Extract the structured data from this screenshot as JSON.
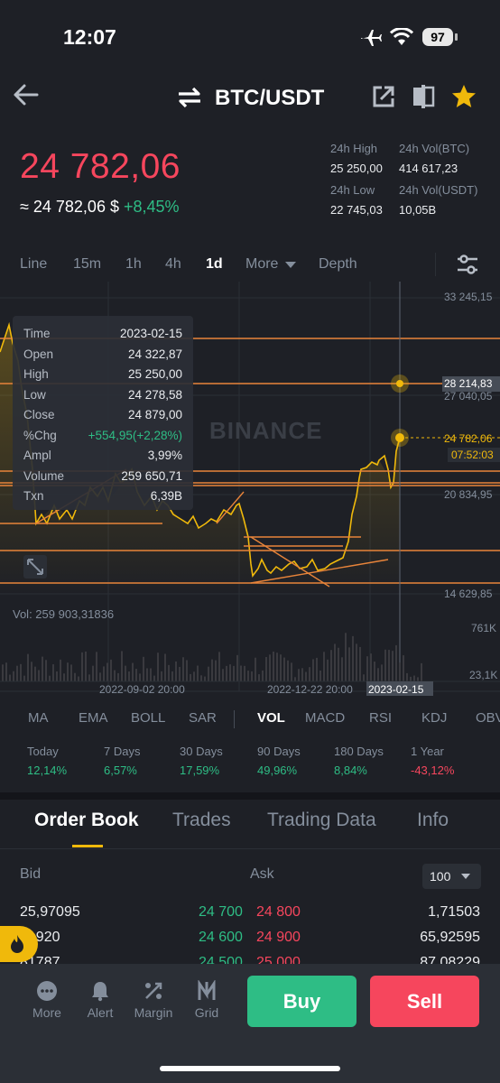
{
  "status": {
    "time": "12:07",
    "battery": "97"
  },
  "header": {
    "pair": "BTC/USDT",
    "icons": [
      "back-arrow-icon",
      "swap-icon",
      "share-icon",
      "compare-icon",
      "star-icon"
    ]
  },
  "price": {
    "last": "24 782,06",
    "approx": "≈ 24 782,06 $",
    "change": "+8,45%",
    "high_label": "24h High",
    "high": "25 250,00",
    "low_label": "24h Low",
    "low": "22 745,03",
    "vol_btc_label": "24h Vol(BTC)",
    "vol_btc": "414 617,23",
    "vol_usdt_label": "24h Vol(USDT)",
    "vol_usdt": "10,05B"
  },
  "intervals": [
    "Line",
    "15m",
    "1h",
    "4h",
    "1d",
    "More",
    "Depth"
  ],
  "active_interval": "1d",
  "chart": {
    "y_labels": [
      "33 245,15",
      "27 040,05",
      "20 834,95",
      "14 629,85"
    ],
    "highlight_price": "28 214,83",
    "current_price": "24 782,06",
    "countdown": "07:52:03",
    "watermark": "BINANCE",
    "vol_label": "Vol: 259 903,31836",
    "vol_axis": [
      "761K",
      "23,1K"
    ],
    "x_labels": [
      "2022-09-02 20:00",
      "2022-12-22 20:00"
    ],
    "x_selected": "2023-02-15",
    "colors": {
      "line": "#f0b90b",
      "accent_line": "#e8843a"
    }
  },
  "tooltip": [
    {
      "label": "Time",
      "value": "2023-02-15"
    },
    {
      "label": "Open",
      "value": "24 322,87"
    },
    {
      "label": "High",
      "value": "25 250,00"
    },
    {
      "label": "Low",
      "value": "24 278,58"
    },
    {
      "label": "Close",
      "value": "24 879,00"
    },
    {
      "label": "%Chg",
      "value": "+554,95(+2,28%)"
    },
    {
      "label": "Ampl",
      "value": "3,99%"
    },
    {
      "label": "Volume",
      "value": "259 650,71"
    },
    {
      "label": "Txn",
      "value": "6,39B"
    }
  ],
  "indicators": [
    "MA",
    "EMA",
    "BOLL",
    "SAR",
    "VOL",
    "MACD",
    "RSI",
    "KDJ",
    "OBV"
  ],
  "active_indicator": "VOL",
  "performance": [
    {
      "label": "Today",
      "value": "12,14%"
    },
    {
      "label": "7 Days",
      "value": "6,57%"
    },
    {
      "label": "30 Days",
      "value": "17,59%"
    },
    {
      "label": "90 Days",
      "value": "49,96%"
    },
    {
      "label": "180 Days",
      "value": "8,84%"
    },
    {
      "label": "1 Year",
      "value": "-43,12%"
    }
  ],
  "orderbook_tabs": [
    "Order Book",
    "Trades",
    "Trading Data",
    "Info"
  ],
  "orderbook": {
    "bid_label": "Bid",
    "ask_label": "Ask",
    "depth": "100",
    "rows": [
      {
        "bid_qty": "25,97095",
        "bid": "24 700",
        "ask": "24 800",
        "ask_qty": "1,71503"
      },
      {
        "bid_qty": "31920",
        "bid": "24 600",
        "ask": "24 900",
        "ask_qty": "65,92595"
      },
      {
        "bid_qty": "81787",
        "bid": "24 500",
        "ask": "25 000",
        "ask_qty": "87,08229"
      }
    ]
  },
  "bottom": {
    "items": [
      "More",
      "Alert",
      "Margin",
      "Grid"
    ],
    "buy": "Buy",
    "sell": "Sell"
  }
}
